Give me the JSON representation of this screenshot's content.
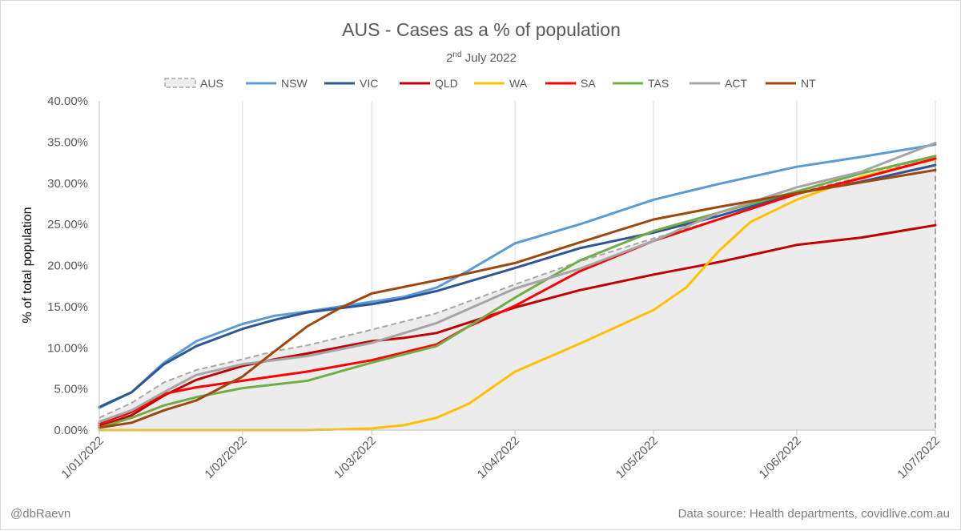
{
  "chart_data": {
    "type": "line",
    "title": "AUS - Cases as a % of population",
    "subtitle": {
      "main": "2",
      "sup": "nd",
      "rest": " July 2022"
    },
    "ylabel": "% of total population",
    "xlabel": "",
    "ylim": [
      0,
      40
    ],
    "yticks": [
      0,
      5,
      10,
      15,
      20,
      25,
      30,
      35,
      40
    ],
    "ytick_labels": [
      "0.00%",
      "5.00%",
      "10.00%",
      "15.00%",
      "20.00%",
      "25.00%",
      "30.00%",
      "35.00%",
      "40.00%"
    ],
    "x_ticks": [
      "1/01/2022",
      "1/02/2022",
      "1/03/2022",
      "1/04/2022",
      "1/05/2022",
      "1/06/2022",
      "1/07/2022"
    ],
    "grid": "vertical",
    "legend_position": "top",
    "series": [
      {
        "name": "AUS",
        "style": "area-dashed",
        "color": "#a6a6a6",
        "fill": "#ececec",
        "points": [
          [
            "1/01/2022",
            1.5
          ],
          [
            "1/01/2022",
            1.5
          ],
          [
            "8/01/2022",
            3.3
          ],
          [
            "15/01/2022",
            5.8
          ],
          [
            "22/01/2022",
            7.3
          ],
          [
            "1/02/2022",
            8.6
          ],
          [
            "8/02/2022",
            9.6
          ],
          [
            "15/02/2022",
            10.3
          ],
          [
            "1/03/2022",
            12.2
          ],
          [
            "15/03/2022",
            14.2
          ],
          [
            "1/04/2022",
            17.7
          ],
          [
            "15/04/2022",
            20.5
          ],
          [
            "1/05/2022",
            23.3
          ],
          [
            "15/05/2022",
            25.6
          ],
          [
            "1/06/2022",
            28.8
          ],
          [
            "15/06/2022",
            30.8
          ],
          [
            "1/07/2022",
            33.3
          ]
        ]
      },
      {
        "name": "NSW",
        "color": "#5b9bd5",
        "points": [
          [
            "1/01/2022",
            2.7
          ],
          [
            "8/01/2022",
            4.6
          ],
          [
            "15/01/2022",
            8.2
          ],
          [
            "22/01/2022",
            10.8
          ],
          [
            "1/02/2022",
            12.9
          ],
          [
            "8/02/2022",
            13.9
          ],
          [
            "15/02/2022",
            14.4
          ],
          [
            "1/03/2022",
            15.6
          ],
          [
            "8/03/2022",
            16.2
          ],
          [
            "15/03/2022",
            17.3
          ],
          [
            "22/03/2022",
            19.4
          ],
          [
            "1/04/2022",
            22.7
          ],
          [
            "15/04/2022",
            25.0
          ],
          [
            "1/05/2022",
            28.0
          ],
          [
            "15/05/2022",
            29.9
          ],
          [
            "1/06/2022",
            32.0
          ],
          [
            "15/06/2022",
            33.2
          ],
          [
            "1/07/2022",
            34.7
          ]
        ]
      },
      {
        "name": "VIC",
        "color": "#2f5597",
        "points": [
          [
            "1/01/2022",
            2.8
          ],
          [
            "8/01/2022",
            4.6
          ],
          [
            "15/01/2022",
            8.0
          ],
          [
            "22/01/2022",
            10.2
          ],
          [
            "1/02/2022",
            12.3
          ],
          [
            "8/02/2022",
            13.4
          ],
          [
            "15/02/2022",
            14.3
          ],
          [
            "1/03/2022",
            15.3
          ],
          [
            "8/03/2022",
            16.0
          ],
          [
            "15/03/2022",
            16.9
          ],
          [
            "1/04/2022",
            19.7
          ],
          [
            "15/04/2022",
            22.1
          ],
          [
            "1/05/2022",
            24.0
          ],
          [
            "15/05/2022",
            26.0
          ],
          [
            "1/06/2022",
            28.8
          ],
          [
            "15/06/2022",
            30.2
          ],
          [
            "1/07/2022",
            32.2
          ]
        ]
      },
      {
        "name": "QLD",
        "color": "#c00000",
        "points": [
          [
            "1/01/2022",
            0.5
          ],
          [
            "8/01/2022",
            1.8
          ],
          [
            "15/01/2022",
            4.2
          ],
          [
            "22/01/2022",
            6.1
          ],
          [
            "1/02/2022",
            7.8
          ],
          [
            "8/02/2022",
            8.6
          ],
          [
            "15/02/2022",
            9.3
          ],
          [
            "1/03/2022",
            10.8
          ],
          [
            "8/03/2022",
            11.2
          ],
          [
            "15/03/2022",
            11.8
          ],
          [
            "1/04/2022",
            14.9
          ],
          [
            "15/04/2022",
            17.0
          ],
          [
            "1/05/2022",
            18.9
          ],
          [
            "15/05/2022",
            20.4
          ],
          [
            "1/06/2022",
            22.5
          ],
          [
            "15/06/2022",
            23.4
          ],
          [
            "1/07/2022",
            24.9
          ]
        ]
      },
      {
        "name": "WA",
        "color": "#ffc000",
        "points": [
          [
            "1/01/2022",
            0.0
          ],
          [
            "1/02/2022",
            0.0
          ],
          [
            "15/02/2022",
            0.0
          ],
          [
            "22/02/2022",
            0.1
          ],
          [
            "1/03/2022",
            0.2
          ],
          [
            "8/03/2022",
            0.6
          ],
          [
            "15/03/2022",
            1.5
          ],
          [
            "22/03/2022",
            3.2
          ],
          [
            "1/04/2022",
            7.1
          ],
          [
            "15/04/2022",
            10.5
          ],
          [
            "1/05/2022",
            14.6
          ],
          [
            "8/05/2022",
            17.3
          ],
          [
            "15/05/2022",
            21.7
          ],
          [
            "22/05/2022",
            25.3
          ],
          [
            "1/06/2022",
            28.0
          ],
          [
            "15/06/2022",
            30.8
          ],
          [
            "1/07/2022",
            32.9
          ]
        ]
      },
      {
        "name": "SA",
        "color": "#ff0000",
        "points": [
          [
            "1/01/2022",
            0.8
          ],
          [
            "8/01/2022",
            2.2
          ],
          [
            "15/01/2022",
            4.4
          ],
          [
            "22/01/2022",
            5.2
          ],
          [
            "1/02/2022",
            6.0
          ],
          [
            "15/02/2022",
            7.1
          ],
          [
            "1/03/2022",
            8.5
          ],
          [
            "15/03/2022",
            10.4
          ],
          [
            "22/03/2022",
            12.6
          ],
          [
            "1/04/2022",
            15.1
          ],
          [
            "15/04/2022",
            19.3
          ],
          [
            "1/05/2022",
            23.0
          ],
          [
            "15/05/2022",
            25.6
          ],
          [
            "1/06/2022",
            28.7
          ],
          [
            "15/06/2022",
            30.6
          ],
          [
            "1/07/2022",
            33.0
          ]
        ]
      },
      {
        "name": "TAS",
        "color": "#70ad47",
        "points": [
          [
            "1/01/2022",
            0.3
          ],
          [
            "8/01/2022",
            1.5
          ],
          [
            "15/01/2022",
            3.0
          ],
          [
            "22/01/2022",
            4.0
          ],
          [
            "1/02/2022",
            5.1
          ],
          [
            "15/02/2022",
            6.0
          ],
          [
            "1/03/2022",
            8.2
          ],
          [
            "15/03/2022",
            10.2
          ],
          [
            "22/03/2022",
            12.6
          ],
          [
            "1/04/2022",
            16.1
          ],
          [
            "15/04/2022",
            20.6
          ],
          [
            "1/05/2022",
            24.2
          ],
          [
            "15/05/2022",
            26.4
          ],
          [
            "1/06/2022",
            29.0
          ],
          [
            "15/06/2022",
            31.2
          ],
          [
            "1/07/2022",
            33.3
          ]
        ]
      },
      {
        "name": "ACT",
        "color": "#a5a5a5",
        "points": [
          [
            "1/01/2022",
            1.0
          ],
          [
            "8/01/2022",
            2.4
          ],
          [
            "15/01/2022",
            4.6
          ],
          [
            "22/01/2022",
            6.7
          ],
          [
            "1/02/2022",
            8.0
          ],
          [
            "15/02/2022",
            9.0
          ],
          [
            "1/03/2022",
            10.6
          ],
          [
            "8/03/2022",
            11.8
          ],
          [
            "15/03/2022",
            13.0
          ],
          [
            "1/04/2022",
            17.2
          ],
          [
            "15/04/2022",
            19.6
          ],
          [
            "1/05/2022",
            23.0
          ],
          [
            "15/05/2022",
            26.4
          ],
          [
            "1/06/2022",
            29.5
          ],
          [
            "15/06/2022",
            31.4
          ],
          [
            "1/07/2022",
            34.9
          ]
        ]
      },
      {
        "name": "NT",
        "color": "#9e480e",
        "points": [
          [
            "1/01/2022",
            0.3
          ],
          [
            "8/01/2022",
            0.9
          ],
          [
            "15/01/2022",
            2.4
          ],
          [
            "22/01/2022",
            3.6
          ],
          [
            "1/02/2022",
            6.5
          ],
          [
            "8/02/2022",
            9.6
          ],
          [
            "15/02/2022",
            12.6
          ],
          [
            "22/02/2022",
            14.8
          ],
          [
            "1/03/2022",
            16.6
          ],
          [
            "15/03/2022",
            18.2
          ],
          [
            "1/04/2022",
            20.3
          ],
          [
            "15/04/2022",
            22.8
          ],
          [
            "1/05/2022",
            25.6
          ],
          [
            "15/05/2022",
            27.1
          ],
          [
            "1/06/2022",
            28.8
          ],
          [
            "15/06/2022",
            30.1
          ],
          [
            "1/07/2022",
            31.6
          ]
        ]
      }
    ]
  },
  "footer": {
    "left": "@dbRaevn",
    "right": "Data source: Health departments, covidlive.com.au"
  }
}
